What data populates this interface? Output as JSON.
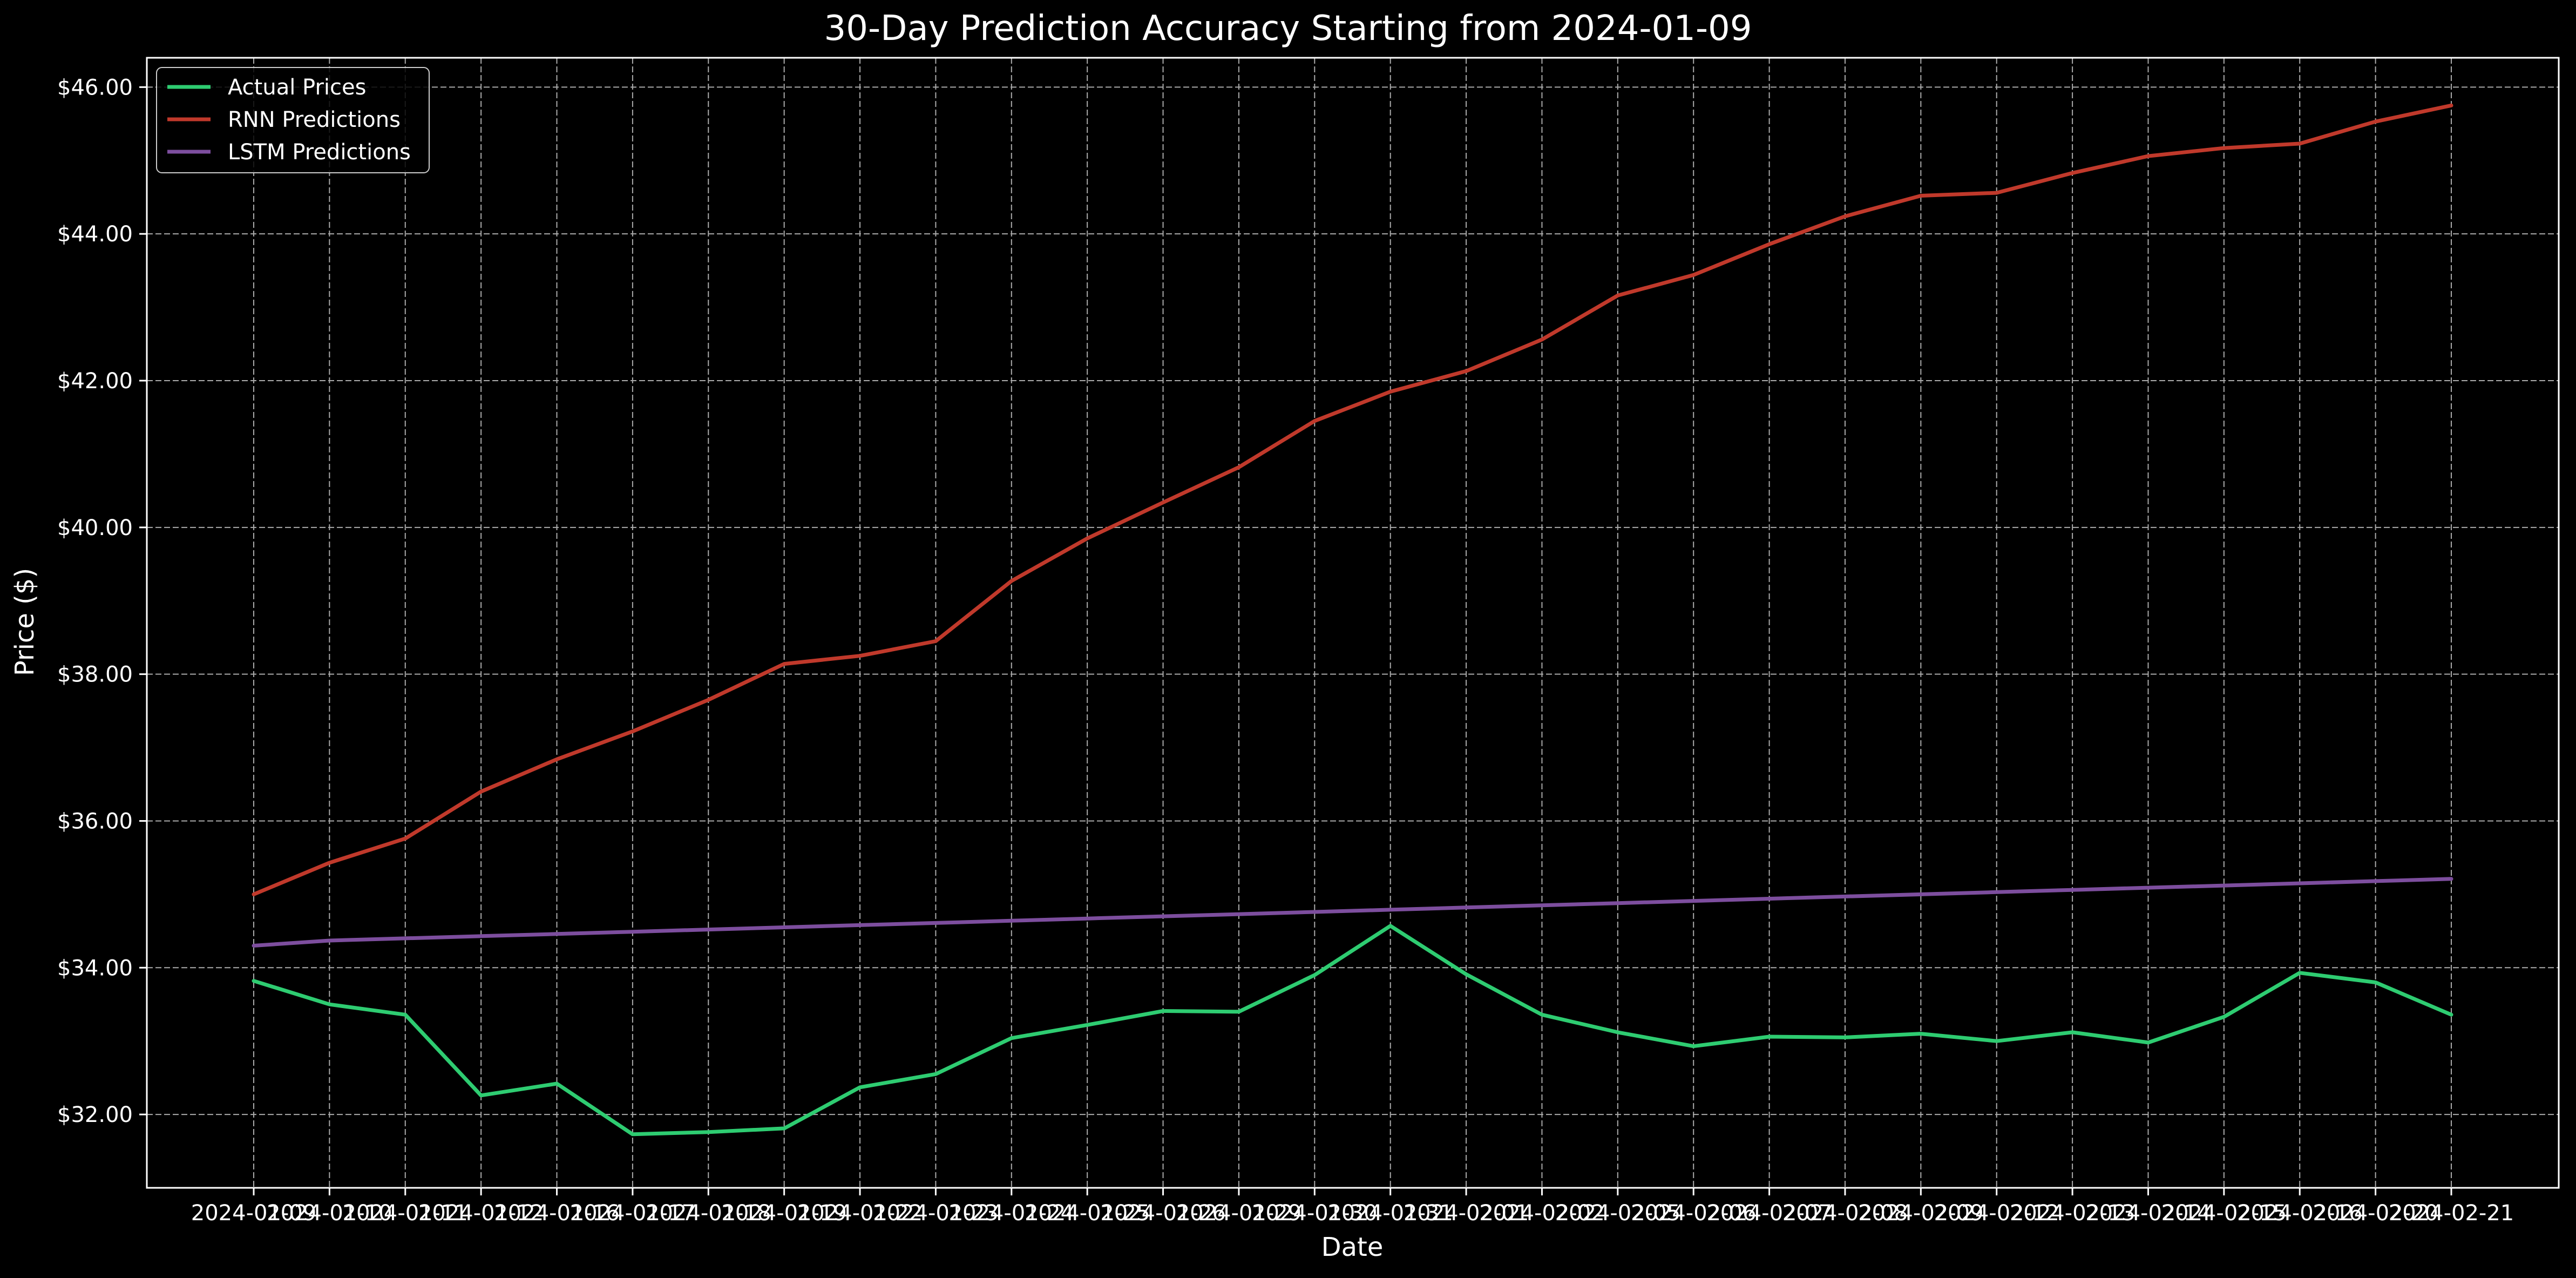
{
  "chart_data": {
    "type": "line",
    "title": "30-Day Prediction Accuracy Starting from 2024-01-09",
    "xlabel": "Date",
    "ylabel": "Price ($)",
    "x": [
      "2024-01-09",
      "2024-01-10",
      "2024-01-11",
      "2024-01-12",
      "2024-01-16",
      "2024-01-17",
      "2024-01-18",
      "2024-01-19",
      "2024-01-22",
      "2024-01-23",
      "2024-01-24",
      "2024-01-25",
      "2024-01-26",
      "2024-01-29",
      "2024-01-30",
      "2024-01-31",
      "2024-02-01",
      "2024-02-02",
      "2024-02-05",
      "2024-02-06",
      "2024-02-07",
      "2024-02-08",
      "2024-02-09",
      "2024-02-12",
      "2024-02-13",
      "2024-02-14",
      "2024-02-15",
      "2024-02-16",
      "2024-02-20",
      "2024-02-21"
    ],
    "ylim": [
      31.0,
      46.4
    ],
    "yticks": [
      "$32.00",
      "$34.00",
      "$36.00",
      "$38.00",
      "$40.00",
      "$42.00",
      "$44.00",
      "$46.00"
    ],
    "ytick_values": [
      32,
      34,
      36,
      38,
      40,
      42,
      44,
      46
    ],
    "grid": true,
    "legend_position": "top-left",
    "colors": {
      "background": "#000000",
      "grid": "#aaaaaa",
      "axes": "#ffffff"
    },
    "series": [
      {
        "name": "Actual Prices",
        "color": "#2ecc71",
        "values": [
          33.82,
          33.5,
          33.36,
          32.26,
          32.42,
          31.73,
          31.76,
          31.81,
          32.37,
          32.55,
          33.04,
          33.22,
          33.41,
          33.4,
          33.9,
          34.57,
          33.91,
          33.36,
          33.12,
          32.93,
          33.06,
          33.05,
          33.1,
          33.0,
          33.12,
          32.98,
          33.33,
          33.93,
          33.8,
          33.36
        ]
      },
      {
        "name": "RNN Predictions",
        "color": "#c0392b",
        "values": [
          35.0,
          35.43,
          35.76,
          36.4,
          36.84,
          37.22,
          37.65,
          38.14,
          38.25,
          38.45,
          39.27,
          39.85,
          40.34,
          40.82,
          41.45,
          41.85,
          42.13,
          42.56,
          43.16,
          43.44,
          43.86,
          44.24,
          44.52,
          44.56,
          44.83,
          45.06,
          45.17,
          45.23,
          45.53,
          45.75
        ]
      },
      {
        "name": "LSTM Predictions",
        "color": "#7d4e9e",
        "values": [
          34.3,
          34.37,
          34.4,
          34.43,
          34.46,
          34.49,
          34.52,
          34.55,
          34.58,
          34.61,
          34.64,
          34.67,
          34.7,
          34.73,
          34.76,
          34.79,
          34.82,
          34.85,
          34.88,
          34.91,
          34.94,
          34.97,
          35.0,
          35.03,
          35.06,
          35.09,
          35.12,
          35.15,
          35.18,
          35.21
        ]
      }
    ]
  }
}
